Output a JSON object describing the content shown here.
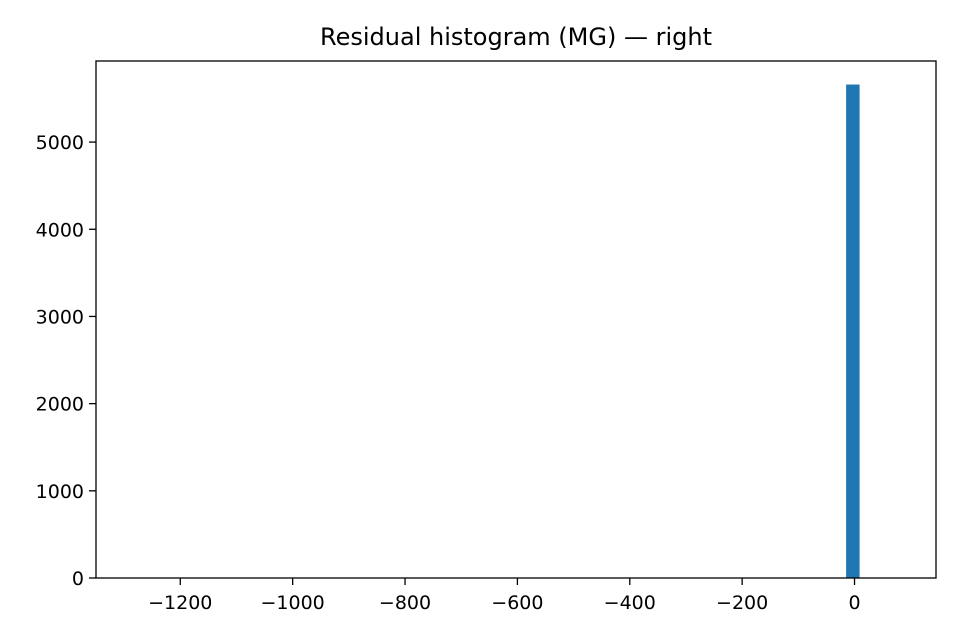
{
  "chart_data": {
    "type": "bar",
    "title": "Residual histogram (MG) — right",
    "xlabel": "",
    "ylabel": "",
    "xlim": [
      -1350,
      145
    ],
    "ylim": [
      0,
      5930
    ],
    "x_ticks": [
      -1200,
      -1000,
      -800,
      -600,
      -400,
      -200,
      0
    ],
    "y_ticks": [
      0,
      1000,
      2000,
      3000,
      4000,
      5000
    ],
    "bins": [
      {
        "x0": -15,
        "x1": 9,
        "count": 5660
      }
    ],
    "grid": false,
    "legend": false,
    "color": "#1f77b4"
  }
}
